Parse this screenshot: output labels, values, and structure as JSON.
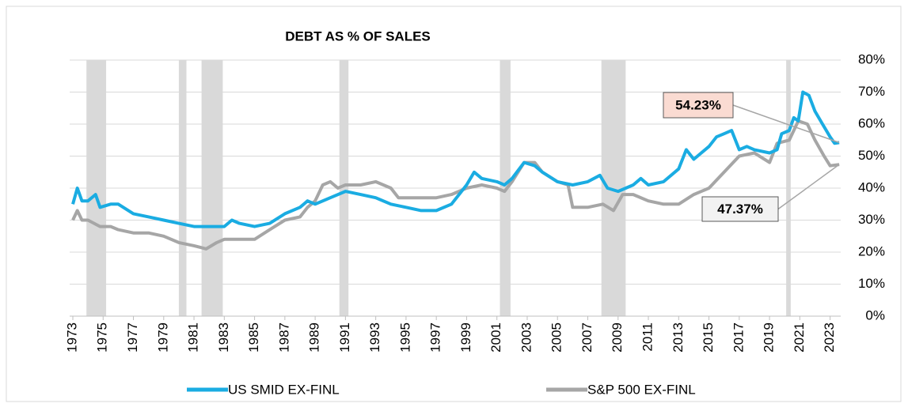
{
  "chart_data": {
    "type": "line",
    "title": "DEBT AS % OF SALES",
    "xlim": [
      1973,
      2023.7
    ],
    "xticks": [
      1973,
      1975,
      1977,
      1979,
      1981,
      1983,
      1985,
      1987,
      1989,
      1991,
      1993,
      1995,
      1997,
      1999,
      2001,
      2003,
      2005,
      2007,
      2009,
      2011,
      2013,
      2015,
      2017,
      2019,
      2021,
      2023
    ],
    "ylim": [
      0,
      80
    ],
    "yticks": [
      {
        "value": 0,
        "label": "0%"
      },
      {
        "value": 10,
        "label": "10%"
      },
      {
        "value": 20,
        "label": "20%"
      },
      {
        "value": 30,
        "label": "30%"
      },
      {
        "value": 40,
        "label": "40%"
      },
      {
        "value": 50,
        "label": "50%"
      },
      {
        "value": 60,
        "label": "60%"
      },
      {
        "value": 70,
        "label": "70%"
      },
      {
        "value": 80,
        "label": "80%"
      }
    ],
    "grid": true,
    "recessions": [
      [
        1973.9,
        1975.2
      ],
      [
        1980.0,
        1980.5
      ],
      [
        1981.5,
        1982.9
      ],
      [
        1990.6,
        1991.2
      ],
      [
        2001.2,
        2001.9
      ],
      [
        2007.9,
        2009.5
      ],
      [
        2020.1,
        2020.4
      ]
    ],
    "recession_color": "#d9d9d9",
    "series": [
      {
        "name": "US SMID EX-FINL",
        "color": "#1aace2",
        "x": [
          1973,
          1973.3,
          1973.6,
          1974,
          1974.5,
          1974.8,
          1975.5,
          1976,
          1977,
          1978,
          1979,
          1980,
          1981,
          1982,
          1983,
          1983.5,
          1984,
          1985,
          1986,
          1987,
          1988,
          1988.5,
          1989,
          1990,
          1991,
          1992,
          1993,
          1994,
          1995,
          1996,
          1997,
          1998,
          1999,
          1999.5,
          2000,
          2001,
          2001.5,
          2002,
          2002.8,
          2003.5,
          2004,
          2005,
          2006,
          2007,
          2007.8,
          2008.3,
          2009,
          2010,
          2010.5,
          2011,
          2012,
          2013,
          2013.5,
          2014,
          2015,
          2015.5,
          2016,
          2016.5,
          2017,
          2017.5,
          2018,
          2019,
          2019.5,
          2019.8,
          2020.3,
          2020.6,
          2020.9,
          2021.2,
          2021.6,
          2022,
          2022.5,
          2023,
          2023.3,
          2023.6
        ],
        "values": [
          35,
          40,
          36,
          36,
          38,
          34,
          35,
          35,
          32,
          31,
          30,
          29,
          28,
          28,
          28,
          30,
          29,
          28,
          29,
          32,
          34,
          36,
          35,
          37,
          39,
          38,
          37,
          35,
          34,
          33,
          33,
          35,
          41,
          45,
          43,
          42,
          41,
          43,
          48,
          47,
          45,
          42,
          41,
          42,
          44,
          40,
          39,
          41,
          43,
          41,
          42,
          46,
          52,
          49,
          53,
          56,
          57,
          58,
          52,
          53,
          52,
          51,
          52,
          57,
          58,
          62,
          61,
          70,
          69,
          64,
          60,
          56,
          54,
          54.23
        ]
      },
      {
        "name": "S&P 500 EX-FINL",
        "color": "#a6a6a6",
        "x": [
          1973,
          1973.3,
          1973.6,
          1974,
          1974.8,
          1975.5,
          1976,
          1977,
          1978,
          1979,
          1980,
          1981,
          1981.8,
          1982.5,
          1983,
          1984,
          1985,
          1986,
          1987,
          1988,
          1988.5,
          1989,
          1989.5,
          1990,
          1990.5,
          1991,
          1992,
          1993,
          1994,
          1994.5,
          1995,
          1996,
          1997,
          1998,
          1999,
          2000,
          2001,
          2001.5,
          2002,
          2002.8,
          2003.5,
          2004,
          2005,
          2005.7,
          2006,
          2006.5,
          2007,
          2008,
          2008.7,
          2009.3,
          2010,
          2011,
          2012,
          2013,
          2014,
          2015,
          2016,
          2017,
          2018,
          2019,
          2019.5,
          2020.3,
          2020.9,
          2021.5,
          2022,
          2022.6,
          2023,
          2023.6
        ],
        "values": [
          30,
          33,
          30,
          30,
          28,
          28,
          27,
          26,
          26,
          25,
          23,
          22,
          21,
          23,
          24,
          24,
          24,
          27,
          30,
          31,
          34,
          36,
          41,
          42,
          40,
          41,
          41,
          42,
          40,
          37,
          37,
          37,
          37,
          38,
          40,
          41,
          40,
          39,
          42,
          48,
          48,
          45,
          42,
          41,
          34,
          34,
          34,
          35,
          33,
          38,
          38,
          36,
          35,
          35,
          38,
          40,
          45,
          50,
          51,
          48,
          54,
          55,
          61,
          60,
          55,
          50,
          47,
          47.37
        ]
      }
    ],
    "annotations": [
      {
        "x": 2023.6,
        "value": 54.23,
        "label": "54.23%",
        "fill": "#fadbd2"
      },
      {
        "x": 2023.6,
        "value": 47.37,
        "label": "47.37%",
        "fill": "#f2f2f2"
      }
    ]
  }
}
